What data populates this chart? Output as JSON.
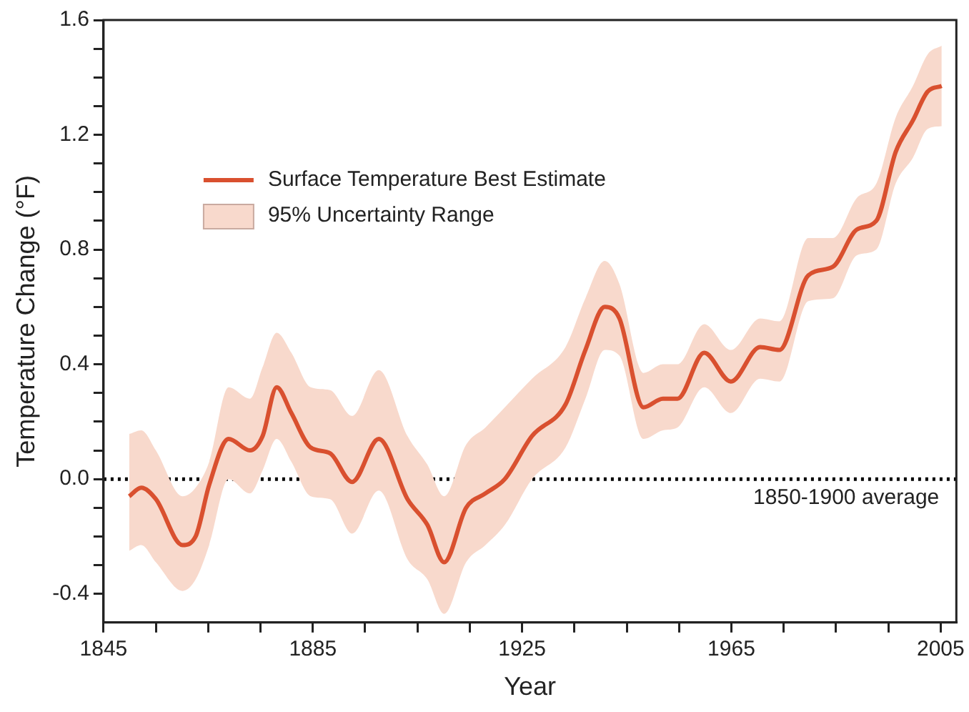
{
  "chart_data": {
    "type": "line",
    "xlabel": "Year",
    "ylabel": "Temperature Change (°F)",
    "xlim": [
      1845,
      2008
    ],
    "xticks": [
      1845,
      {
        "value": 1855,
        "label": null
      },
      {
        "value": 1865,
        "label": null
      },
      {
        "value": 1875,
        "label": null
      },
      1885,
      {
        "value": 1895,
        "label": null
      },
      {
        "value": 1905,
        "label": null
      },
      {
        "value": 1915,
        "label": null
      },
      1925,
      {
        "value": 1935,
        "label": null
      },
      {
        "value": 1945,
        "label": null
      },
      {
        "value": 1955,
        "label": null
      },
      1965,
      {
        "value": 1975,
        "label": null
      },
      {
        "value": 1985,
        "label": null
      },
      {
        "value": 1995,
        "label": null
      },
      2005
    ],
    "ylim": [
      -0.5,
      1.6
    ],
    "yticks": [
      -0.4,
      {
        "value": -0.3,
        "label": null
      },
      {
        "value": -0.2,
        "label": null
      },
      {
        "value": -0.1,
        "label": null
      },
      {
        "value": 0,
        "label": "0.0"
      },
      {
        "value": 0.1,
        "label": null
      },
      {
        "value": 0.2,
        "label": null
      },
      {
        "value": 0.3,
        "label": null
      },
      0.4,
      {
        "value": 0.5,
        "label": null
      },
      {
        "value": 0.6,
        "label": null
      },
      {
        "value": 0.7,
        "label": null
      },
      0.8,
      {
        "value": 0.9,
        "label": null
      },
      {
        "value": 1.0,
        "label": null
      },
      {
        "value": 1.1,
        "label": null
      },
      1.2,
      {
        "value": 1.3,
        "label": null
      },
      {
        "value": 1.4,
        "label": null
      },
      {
        "value": 1.5,
        "label": null
      },
      1.6
    ],
    "x": [
      1849.9,
      1852.2,
      1855,
      1860.1,
      1862.6,
      1865.2,
      1868.9,
      1873,
      1875.4,
      1878.1,
      1880.9,
      1884.6,
      1888.3,
      1892.5,
      1897.6,
      1903.1,
      1906.9,
      1910.1,
      1914.3,
      1918,
      1921.7,
      1926.9,
      1933.3,
      1937.1,
      1940.8,
      1943.6,
      1948.2,
      1951.9,
      1954.7,
      1959.8,
      1964.9,
      1970.5,
      1974.2,
      1979.7,
      1984.4,
      1989,
      1992.7,
      1996.4,
      1999.7,
      2002.5,
      2005.2
    ],
    "series": [
      {
        "name": "Surface Temperature Best Estimate",
        "color": "#d9502f",
        "values": [
          -0.06,
          -0.03,
          -0.07,
          -0.23,
          -0.2,
          -0.02,
          0.14,
          0.1,
          0.15,
          0.32,
          0.23,
          0.11,
          0.09,
          -0.01,
          0.14,
          -0.07,
          -0.16,
          -0.29,
          -0.1,
          -0.05,
          0.0,
          0.15,
          0.26,
          0.45,
          0.6,
          0.56,
          0.25,
          0.28,
          0.28,
          0.44,
          0.34,
          0.46,
          0.45,
          0.71,
          0.74,
          0.87,
          0.9,
          1.14,
          1.25,
          1.35,
          1.37
        ]
      },
      {
        "name": "95% Uncertainty Range",
        "type": "area",
        "color": "#f8d9cc",
        "values": [
          null,
          null,
          null,
          null,
          null,
          null,
          null,
          null,
          null,
          null,
          null,
          null,
          null,
          null,
          null,
          null,
          null,
          null,
          null,
          null,
          null,
          null,
          null,
          null,
          null,
          null,
          null,
          null,
          null,
          null,
          null,
          null,
          null,
          null,
          null,
          null,
          null,
          null,
          null,
          null,
          null
        ],
        "lower": [
          -0.25,
          -0.23,
          -0.29,
          -0.39,
          -0.35,
          -0.23,
          0.0,
          -0.05,
          0.03,
          0.14,
          0.06,
          -0.06,
          -0.07,
          -0.19,
          -0.04,
          -0.28,
          -0.35,
          -0.47,
          -0.29,
          -0.23,
          -0.16,
          0.0,
          0.11,
          0.28,
          0.45,
          0.43,
          0.14,
          0.17,
          0.18,
          0.32,
          0.23,
          0.35,
          0.34,
          0.62,
          0.63,
          0.78,
          0.8,
          1.03,
          1.12,
          1.22,
          1.23
        ],
        "upper": [
          0.157,
          0.17,
          0.1,
          -0.06,
          -0.03,
          0.06,
          0.32,
          0.28,
          0.39,
          0.51,
          0.44,
          0.32,
          0.31,
          0.22,
          0.38,
          0.15,
          0.05,
          -0.06,
          0.12,
          0.18,
          0.25,
          0.35,
          0.46,
          0.63,
          0.76,
          0.68,
          0.37,
          0.4,
          0.4,
          0.54,
          0.45,
          0.56,
          0.55,
          0.84,
          0.84,
          0.98,
          1.03,
          1.26,
          1.37,
          1.48,
          1.51
        ]
      }
    ],
    "ref_lines": [
      {
        "axis": "y",
        "value": 0,
        "label": "1850-1900 average",
        "color": "#000000",
        "line_style": "dotted"
      }
    ],
    "legend": "top left",
    "grid": false,
    "marker": "none",
    "line_style": "solid"
  }
}
